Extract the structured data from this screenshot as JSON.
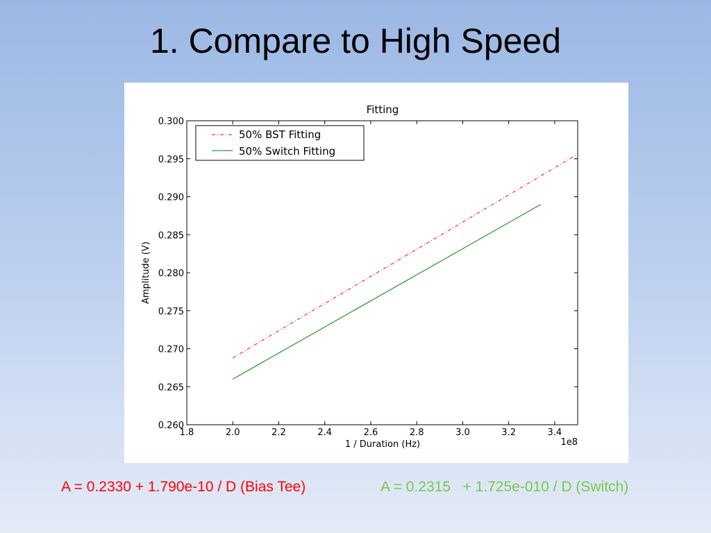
{
  "slide": {
    "title": "1. Compare to High Speed",
    "equation_bias": "A = 0.2330 + 1.790e-10 / D (Bias Tee)",
    "equation_switch": "A = 0.2315   + 1.725e-010 / D (Switch)"
  },
  "colors": {
    "bias_series": "#ff0000",
    "switch_series": "#008000",
    "equation_bias": "#ff0000",
    "equation_switch": "#78c84a"
  },
  "chart_data": {
    "type": "line",
    "title": "Fitting",
    "xlabel": "1 / Duration (Hz)",
    "ylabel": "Amplitude (V)",
    "x_offset_label": "1e8",
    "xlim": [
      1.8,
      3.5
    ],
    "ylim": [
      0.26,
      0.3
    ],
    "xticks": [
      "1.8",
      "2.0",
      "2.2",
      "2.4",
      "2.6",
      "2.8",
      "3.0",
      "3.2",
      "3.4"
    ],
    "yticks": [
      "0.260",
      "0.265",
      "0.270",
      "0.275",
      "0.280",
      "0.285",
      "0.290",
      "0.295",
      "0.300"
    ],
    "grid": false,
    "legend_position": "top-left",
    "series": [
      {
        "name": "50% BST Fitting",
        "style": "dashdot",
        "color": "#ff0000",
        "x": [
          2.0,
          3.5
        ],
        "y": [
          0.2688,
          0.2956
        ]
      },
      {
        "name": "50% Switch Fitting",
        "style": "solid",
        "color": "#008000",
        "x": [
          2.0,
          3.34
        ],
        "y": [
          0.266,
          0.289
        ]
      }
    ]
  }
}
